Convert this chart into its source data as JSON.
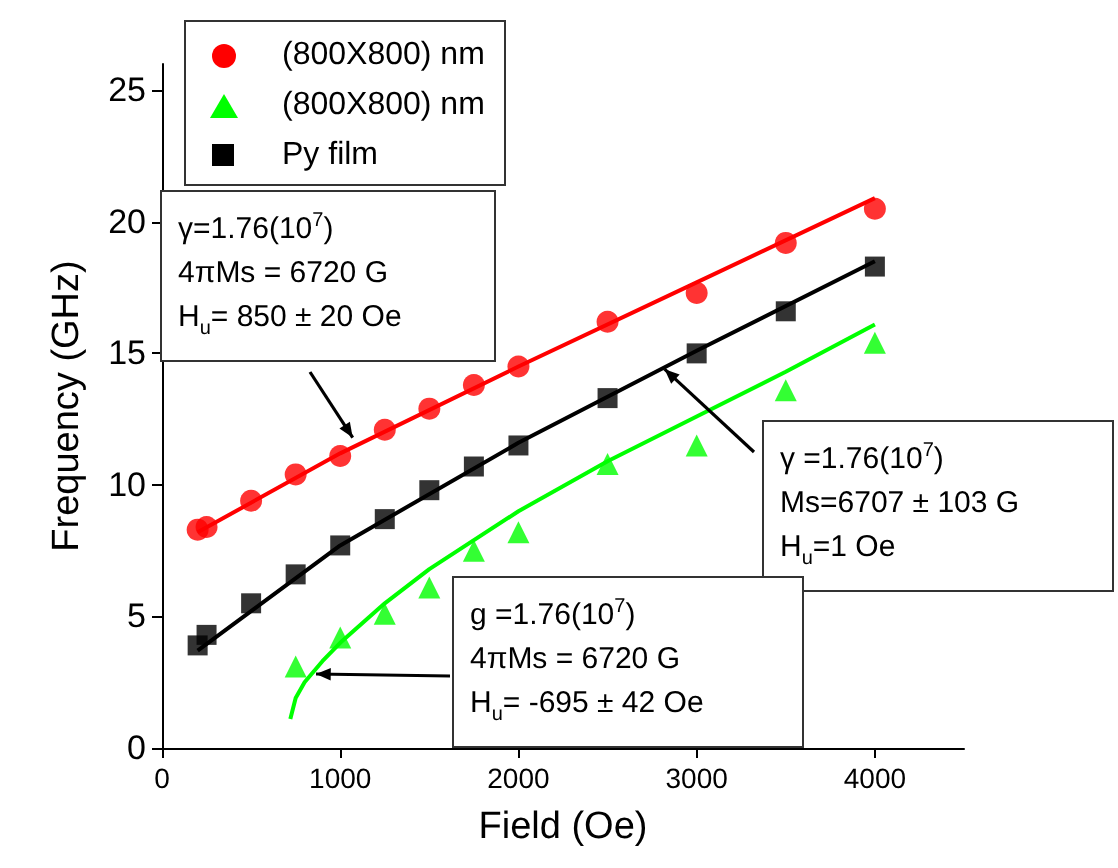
{
  "chart_data": {
    "type": "scatter",
    "xlabel": "Field (Oe)",
    "ylabel": "Frequency (GHz)",
    "xlim": [
      0,
      4500
    ],
    "xticks": [
      0,
      1000,
      2000,
      3000,
      4000
    ],
    "ylim": [
      0,
      26
    ],
    "yticks": [
      0,
      5,
      10,
      15,
      20,
      25
    ],
    "grid": false,
    "legend": "top left",
    "series": [
      {
        "name": "(800X800) nm",
        "marker": "circle",
        "color": "#ff0000",
        "x": [
          200,
          250,
          500,
          750,
          1000,
          1250,
          1500,
          1750,
          2000,
          2500,
          3000,
          3500,
          4000
        ],
        "values": [
          8.3,
          8.4,
          9.4,
          10.4,
          11.1,
          12.1,
          12.9,
          13.8,
          14.5,
          16.2,
          17.3,
          19.2,
          20.5
        ]
      },
      {
        "name": "(800X800) nm",
        "marker": "triangle",
        "color": "#00ff00",
        "x": [
          750,
          1000,
          1250,
          1500,
          1750,
          2000,
          2500,
          3000,
          3500,
          4000
        ],
        "values": [
          3.1,
          4.2,
          5.1,
          6.1,
          7.5,
          8.2,
          10.8,
          11.5,
          13.6,
          15.4
        ]
      },
      {
        "name": "Py film",
        "marker": "square",
        "color": "#000000",
        "x": [
          200,
          250,
          500,
          750,
          1000,
          1250,
          1500,
          1750,
          2000,
          2500,
          3000,
          3500,
          4000
        ],
        "values": [
          3.9,
          4.3,
          5.5,
          6.6,
          7.7,
          8.7,
          9.8,
          10.7,
          11.5,
          13.3,
          15.0,
          16.6,
          18.3
        ]
      },
      {
        "type": "line",
        "color": "#ff0000",
        "x": [
          200,
          1000,
          2000,
          3000,
          4000
        ],
        "values": [
          8.2,
          11.2,
          14.5,
          17.7,
          20.9
        ]
      },
      {
        "type": "line",
        "color": "#000000",
        "x": [
          200,
          1000,
          2000,
          3000,
          4000
        ],
        "values": [
          3.7,
          7.7,
          11.6,
          15.1,
          18.5
        ]
      },
      {
        "type": "line",
        "color": "#00ff00",
        "x": [
          720,
          750,
          800,
          850,
          900,
          1000,
          1250,
          1500,
          2000,
          2500,
          3000,
          3500,
          4000
        ],
        "values": [
          1.1,
          1.9,
          2.5,
          2.9,
          3.3,
          4.0,
          5.5,
          6.8,
          9.0,
          10.9,
          12.6,
          14.3,
          16.1
        ]
      }
    ],
    "annotations": [
      {
        "text": "γ=1.76(10$^{7}$)\n4πMs = 6720 G\nH$_{u}$= 850 ± 20 Oe",
        "x": 1070,
        "y": 11.8
      },
      {
        "text": "γ =1.76(10$^{7}$)\nMs=6707 ± 103 G\nH$_{u}$=1 Oe",
        "x": 2820,
        "y": 14.4
      },
      "g =1.76(10$^{7}$)\n4πMs = 6720 G\nH$_{u}$= -695 ± 42 Oe"
    ]
  }
}
